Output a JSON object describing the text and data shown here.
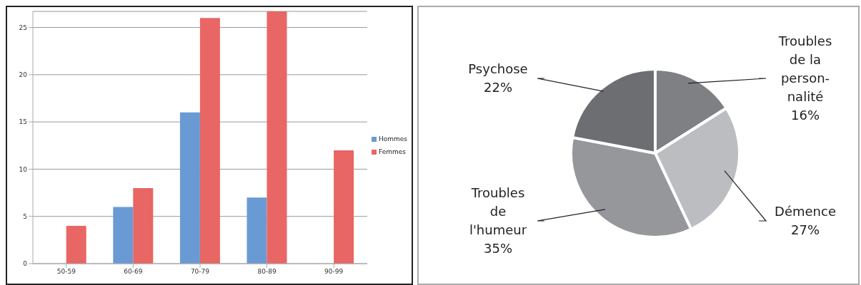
{
  "chart_data": [
    {
      "type": "bar",
      "categories": [
        "50-59",
        "60-69",
        "70-79",
        "80-89",
        "90-99"
      ],
      "series": [
        {
          "name": "Hommes",
          "color": "#6a9ad4",
          "values": [
            null,
            6,
            16,
            7,
            null
          ]
        },
        {
          "name": "Femmes",
          "color": "#e86664",
          "values": [
            4,
            8,
            26,
            26.7,
            12
          ]
        }
      ],
      "ylim": [
        0,
        26.7
      ],
      "yticks": [
        0,
        5,
        10,
        15,
        20,
        25
      ],
      "grid": "y",
      "legend": "right"
    },
    {
      "type": "pie",
      "categories": [
        "Troubles\nde la\nperson-\nnalité",
        "Démence",
        "Troubles\nde\nl'humeur",
        "Psychose"
      ],
      "values": [
        16,
        27,
        35,
        22
      ],
      "value_labels": [
        "16%",
        "27%",
        "35%",
        "22%"
      ],
      "colors": [
        "#7f8084",
        "#bcbdc1",
        "#96979b",
        "#6d6e72"
      ]
    }
  ]
}
